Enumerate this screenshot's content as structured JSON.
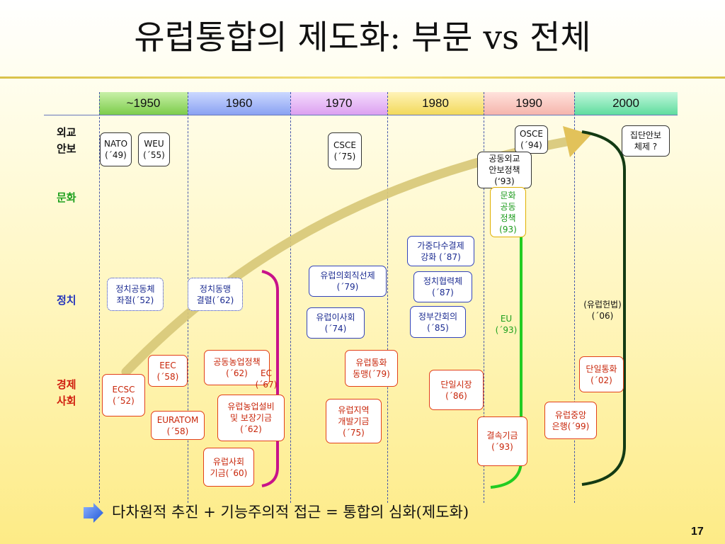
{
  "title": "유럽통합의 제도화: 부문 vs 전체",
  "eras": [
    {
      "label": "~1950",
      "color": "#99d96b"
    },
    {
      "label": "1960",
      "color": "#9fb3f7"
    },
    {
      "label": "1970",
      "color": "#e4b4f5"
    },
    {
      "label": "1980",
      "color": "#f7e37e"
    },
    {
      "label": "1990",
      "color": "#f9c7c0"
    },
    {
      "label": "2000",
      "color": "#7fe6b4"
    }
  ],
  "categories": {
    "foreign": "외교\n안보",
    "culture": "문화",
    "politics": "정치",
    "economy": "경제\n사회"
  },
  "category_colors": {
    "foreign": "#111111",
    "culture": "#1ea01e",
    "politics": "#2233bb",
    "economy": "#d02010"
  },
  "items": {
    "nato": "NATO\n(´49)",
    "weu": "WEU\n(´55)",
    "csce": "CSCE\n(´75)",
    "osce": "OSCE\n(´94)",
    "cfsp": "공동외교\n안보정책\n(‘93)",
    "collective_security": "집단안보\n체제 ?",
    "culture_policy": "문화\n공동\n정책\n(93)",
    "qmv": "가중다수결제\n강화 (´87)",
    "ep_election": "유럽의회직선제\n(´79)",
    "political_coop": "정치협력체\n(´87)",
    "political_community": "정치공동체\n좌절(´52)",
    "political_union": "정치동맹\n결렬(´62)",
    "council": "유럽이사회\n(´74)",
    "igc": "정부간회의\n(´85)",
    "eu": "EU\n(´93)",
    "constitution": "(유럽헌법)\n(´06)",
    "eec": "EEC\n(´58)",
    "cap": "공동농업정책\n(´62)",
    "ec": "EC\n(´67)",
    "ems": "유럽통화\n동맹(´79)",
    "single_currency": "단일통화\n(´02)",
    "ecsc": "ECSC\n(´52)",
    "single_market": "단일시장\n(´86)",
    "euratom": "EURATOM\n(´58)",
    "eagf": "유럽농업설비\n및 보장기금\n(´62)",
    "erdf": "유럽지역\n개발기금\n(´75)",
    "ecb": "유럽중앙\n은행(´99)",
    "cohesion_fund": "결속기금\n(´93)",
    "esf": "유럽사회\n기금(´60)"
  },
  "summary": "다차원적 추진 + 기능주의적 접근 = 통합의 심화(제도화)",
  "page_number": "17"
}
